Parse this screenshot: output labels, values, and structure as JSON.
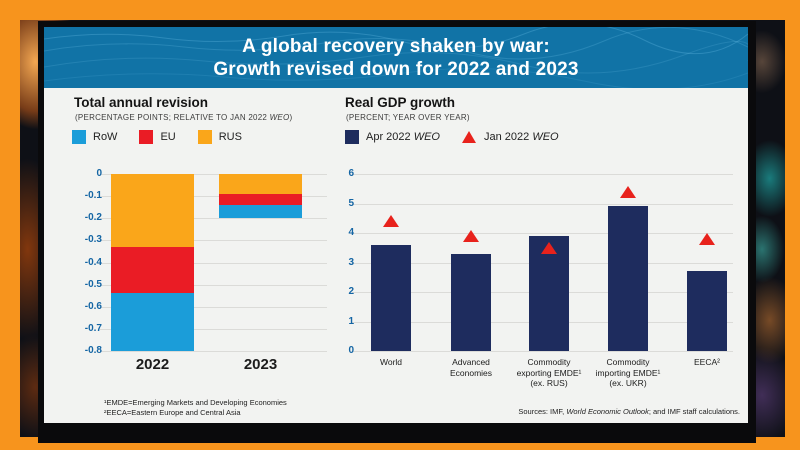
{
  "frame_color": "#F7941D",
  "banner": {
    "bg": "#1173A6",
    "title_line1": "A global recovery shaken by war:",
    "title_line2": "Growth revised down for 2022 and 2023"
  },
  "left_chart": {
    "title": "Total annual revision",
    "subtitle_prefix": "(PERCENTAGE POINTS; RELATIVE TO JAN 2022 ",
    "subtitle_italic": "WEO",
    "subtitle_suffix": ")",
    "legend": [
      {
        "label": "RoW",
        "color": "#1B9DD9"
      },
      {
        "label": "EU",
        "color": "#EA1C25"
      },
      {
        "label": "RUS",
        "color": "#FAA61A"
      }
    ]
  },
  "right_chart": {
    "title": "Real GDP growth",
    "subtitle": "(PERCENT; YEAR OVER YEAR)",
    "legend_bar_prefix": "Apr 2022 ",
    "legend_bar_italic": "WEO",
    "legend_marker_prefix": "Jan 2022 ",
    "legend_marker_italic": "WEO",
    "bar_color": "#1E2C5E",
    "marker_color": "#E8221C"
  },
  "footnotes": [
    "¹EMDE=Emerging Markets and Developing Economies",
    "²EECA=Eastern Europe and Central Asia"
  ],
  "sources": {
    "prefix": "Sources: IMF, ",
    "italic": "World Economic Outlook",
    "suffix": "; and IMF staff calculations."
  },
  "chart_data": [
    {
      "type": "bar",
      "stacked": true,
      "title": "Total annual revision",
      "ylabel": "Percentage points; relative to Jan 2022 WEO",
      "categories": [
        "2022",
        "2023"
      ],
      "series": [
        {
          "name": "RUS",
          "color": "#FAA61A",
          "values": [
            -0.33,
            -0.09
          ]
        },
        {
          "name": "EU",
          "color": "#EA1C25",
          "values": [
            -0.21,
            -0.05
          ]
        },
        {
          "name": "RoW",
          "color": "#1B9DD9",
          "values": [
            -0.26,
            -0.06
          ]
        }
      ],
      "ylim": [
        -0.8,
        0
      ],
      "yticks": [
        "0",
        "-0.1",
        "-0.2",
        "-0.3",
        "-0.4",
        "-0.5",
        "-0.6",
        "-0.7",
        "-0.8"
      ],
      "grid": true,
      "legend_position": "top"
    },
    {
      "type": "bar",
      "title": "Real GDP growth",
      "ylabel": "Percent; year over year",
      "categories": [
        "World",
        "Advanced Economies",
        "Commodity exporting EMDE¹ (ex. RUS)",
        "Commodity importing EMDE¹ (ex. UKR)",
        "EECA²"
      ],
      "category_lines": [
        [
          "World"
        ],
        [
          "Advanced",
          "Economies"
        ],
        [
          "Commodity",
          "exporting EMDE¹",
          "(ex. RUS)"
        ],
        [
          "Commodity",
          "importing EMDE¹",
          "(ex. UKR)"
        ],
        [
          "EECA²"
        ]
      ],
      "series": [
        {
          "name": "Apr 2022 WEO",
          "type": "bar",
          "color": "#1E2C5E",
          "values": [
            3.6,
            3.3,
            3.9,
            4.9,
            2.7
          ]
        },
        {
          "name": "Jan 2022 WEO",
          "type": "triangle",
          "color": "#E8221C",
          "values": [
            4.4,
            3.9,
            3.5,
            5.4,
            3.8
          ]
        }
      ],
      "ylim": [
        0,
        6
      ],
      "yticks": [
        "0",
        "1",
        "2",
        "3",
        "4",
        "5",
        "6"
      ],
      "grid": true,
      "legend_position": "top"
    }
  ]
}
